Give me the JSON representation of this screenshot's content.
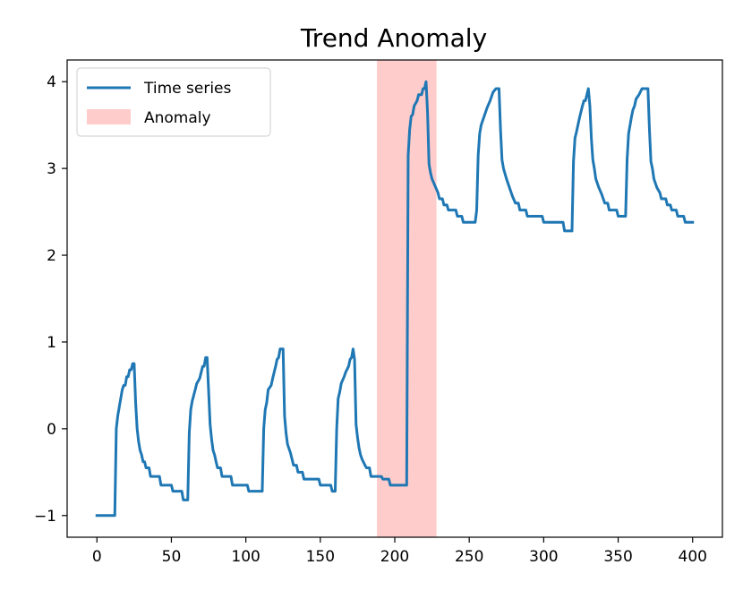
{
  "chart_data": {
    "type": "line",
    "title": "Trend Anomaly",
    "xlabel": "",
    "ylabel": "",
    "xlim": [
      -20,
      420
    ],
    "ylim": [
      -1.25,
      4.25
    ],
    "x_ticks": [
      0,
      50,
      100,
      150,
      200,
      250,
      300,
      350,
      400
    ],
    "y_ticks": [
      -1,
      0,
      1,
      2,
      3,
      4
    ],
    "x_tick_labels": [
      "0",
      "50",
      "100",
      "150",
      "200",
      "250",
      "300",
      "350",
      "400"
    ],
    "y_tick_labels": [
      "−1",
      "0",
      "1",
      "2",
      "3",
      "4"
    ],
    "grid": false,
    "legend_position": "upper-left",
    "legend": [
      {
        "label": "Time series",
        "kind": "line",
        "color": "#1f77b4"
      },
      {
        "label": "Anomaly",
        "kind": "patch",
        "color": "#ffcccc"
      }
    ],
    "anomaly_span": {
      "x_start": 188,
      "x_end": 228,
      "color": "#ffcccc"
    },
    "series": [
      {
        "name": "Time series",
        "color": "#1f77b4",
        "points": [
          [
            0,
            -1.0
          ],
          [
            12,
            -1.0
          ],
          [
            13,
            0.0
          ],
          [
            14,
            0.15
          ],
          [
            15,
            0.25
          ],
          [
            16,
            0.35
          ],
          [
            17,
            0.45
          ],
          [
            18,
            0.5
          ],
          [
            19,
            0.5
          ],
          [
            20,
            0.6
          ],
          [
            21,
            0.6
          ],
          [
            22,
            0.68
          ],
          [
            23,
            0.68
          ],
          [
            24,
            0.75
          ],
          [
            25,
            0.75
          ],
          [
            26,
            0.3
          ],
          [
            27,
            0.0
          ],
          [
            28,
            -0.15
          ],
          [
            29,
            -0.25
          ],
          [
            30,
            -0.3
          ],
          [
            31,
            -0.38
          ],
          [
            32,
            -0.38
          ],
          [
            33,
            -0.45
          ],
          [
            35,
            -0.45
          ],
          [
            36,
            -0.55
          ],
          [
            42,
            -0.55
          ],
          [
            43,
            -0.65
          ],
          [
            50,
            -0.65
          ],
          [
            51,
            -0.72
          ],
          [
            57,
            -0.72
          ],
          [
            58,
            -0.82
          ],
          [
            61,
            -0.82
          ],
          [
            62,
            -0.05
          ],
          [
            63,
            0.22
          ],
          [
            64,
            0.32
          ],
          [
            66,
            0.45
          ],
          [
            67,
            0.52
          ],
          [
            69,
            0.58
          ],
          [
            70,
            0.65
          ],
          [
            71,
            0.72
          ],
          [
            72,
            0.72
          ],
          [
            73,
            0.82
          ],
          [
            74,
            0.82
          ],
          [
            76,
            0.05
          ],
          [
            77,
            -0.12
          ],
          [
            78,
            -0.25
          ],
          [
            79,
            -0.3
          ],
          [
            80,
            -0.38
          ],
          [
            81,
            -0.45
          ],
          [
            83,
            -0.45
          ],
          [
            84,
            -0.55
          ],
          [
            90,
            -0.55
          ],
          [
            91,
            -0.65
          ],
          [
            101,
            -0.65
          ],
          [
            102,
            -0.72
          ],
          [
            111,
            -0.72
          ],
          [
            112,
            0.0
          ],
          [
            113,
            0.22
          ],
          [
            114,
            0.3
          ],
          [
            115,
            0.45
          ],
          [
            117,
            0.5
          ],
          [
            118,
            0.58
          ],
          [
            119,
            0.65
          ],
          [
            120,
            0.72
          ],
          [
            121,
            0.8
          ],
          [
            122,
            0.82
          ],
          [
            123,
            0.92
          ],
          [
            125,
            0.92
          ],
          [
            126,
            0.15
          ],
          [
            127,
            -0.05
          ],
          [
            128,
            -0.18
          ],
          [
            130,
            -0.28
          ],
          [
            131,
            -0.35
          ],
          [
            132,
            -0.42
          ],
          [
            134,
            -0.42
          ],
          [
            135,
            -0.5
          ],
          [
            138,
            -0.5
          ],
          [
            139,
            -0.58
          ],
          [
            149,
            -0.58
          ],
          [
            150,
            -0.65
          ],
          [
            157,
            -0.65
          ],
          [
            158,
            -0.72
          ],
          [
            160,
            -0.72
          ],
          [
            161,
            0.0
          ],
          [
            162,
            0.35
          ],
          [
            163,
            0.42
          ],
          [
            164,
            0.52
          ],
          [
            166,
            0.6
          ],
          [
            167,
            0.65
          ],
          [
            169,
            0.72
          ],
          [
            170,
            0.8
          ],
          [
            171,
            0.82
          ],
          [
            172,
            0.92
          ],
          [
            173,
            0.8
          ],
          [
            174,
            0.05
          ],
          [
            175,
            -0.1
          ],
          [
            176,
            -0.22
          ],
          [
            177,
            -0.3
          ],
          [
            178,
            -0.35
          ],
          [
            180,
            -0.42
          ],
          [
            181,
            -0.45
          ],
          [
            183,
            -0.45
          ],
          [
            184,
            -0.55
          ],
          [
            191,
            -0.55
          ],
          [
            192,
            -0.58
          ],
          [
            196,
            -0.58
          ],
          [
            197,
            -0.65
          ],
          [
            208,
            -0.65
          ],
          [
            209,
            3.15
          ],
          [
            210,
            3.45
          ],
          [
            211,
            3.6
          ],
          [
            212,
            3.62
          ],
          [
            213,
            3.72
          ],
          [
            215,
            3.78
          ],
          [
            216,
            3.85
          ],
          [
            218,
            3.85
          ],
          [
            219,
            3.92
          ],
          [
            220,
            3.92
          ],
          [
            221,
            4.0
          ],
          [
            222,
            3.65
          ],
          [
            223,
            3.05
          ],
          [
            224,
            2.95
          ],
          [
            225,
            2.88
          ],
          [
            227,
            2.8
          ],
          [
            229,
            2.72
          ],
          [
            230,
            2.65
          ],
          [
            232,
            2.65
          ],
          [
            233,
            2.58
          ],
          [
            235,
            2.58
          ],
          [
            236,
            2.52
          ],
          [
            241,
            2.52
          ],
          [
            242,
            2.45
          ],
          [
            245,
            2.45
          ],
          [
            246,
            2.38
          ],
          [
            254,
            2.38
          ],
          [
            255,
            2.52
          ],
          [
            256,
            3.15
          ],
          [
            257,
            3.4
          ],
          [
            258,
            3.5
          ],
          [
            260,
            3.6
          ],
          [
            262,
            3.7
          ],
          [
            264,
            3.78
          ],
          [
            266,
            3.88
          ],
          [
            268,
            3.92
          ],
          [
            270,
            3.92
          ],
          [
            271,
            3.45
          ],
          [
            272,
            3.1
          ],
          [
            273,
            3.0
          ],
          [
            275,
            2.88
          ],
          [
            277,
            2.78
          ],
          [
            279,
            2.68
          ],
          [
            281,
            2.6
          ],
          [
            283,
            2.6
          ],
          [
            284,
            2.52
          ],
          [
            288,
            2.52
          ],
          [
            289,
            2.45
          ],
          [
            299,
            2.45
          ],
          [
            300,
            2.38
          ],
          [
            313,
            2.38
          ],
          [
            314,
            2.28
          ],
          [
            319,
            2.28
          ],
          [
            320,
            3.08
          ],
          [
            321,
            3.35
          ],
          [
            322,
            3.42
          ],
          [
            323,
            3.5
          ],
          [
            324,
            3.58
          ],
          [
            325,
            3.65
          ],
          [
            326,
            3.72
          ],
          [
            327,
            3.78
          ],
          [
            328,
            3.78
          ],
          [
            329,
            3.85
          ],
          [
            330,
            3.92
          ],
          [
            331,
            3.72
          ],
          [
            332,
            3.35
          ],
          [
            333,
            3.1
          ],
          [
            334,
            3.0
          ],
          [
            335,
            2.88
          ],
          [
            337,
            2.78
          ],
          [
            339,
            2.7
          ],
          [
            341,
            2.6
          ],
          [
            343,
            2.6
          ],
          [
            344,
            2.52
          ],
          [
            349,
            2.52
          ],
          [
            350,
            2.45
          ],
          [
            355,
            2.45
          ],
          [
            356,
            3.1
          ],
          [
            357,
            3.4
          ],
          [
            358,
            3.5
          ],
          [
            359,
            3.6
          ],
          [
            360,
            3.68
          ],
          [
            361,
            3.72
          ],
          [
            362,
            3.8
          ],
          [
            364,
            3.85
          ],
          [
            366,
            3.92
          ],
          [
            370,
            3.92
          ],
          [
            371,
            3.45
          ],
          [
            372,
            3.08
          ],
          [
            373,
            3.0
          ],
          [
            374,
            2.88
          ],
          [
            376,
            2.78
          ],
          [
            378,
            2.72
          ],
          [
            379,
            2.65
          ],
          [
            382,
            2.65
          ],
          [
            383,
            2.58
          ],
          [
            385,
            2.58
          ],
          [
            386,
            2.52
          ],
          [
            389,
            2.52
          ],
          [
            390,
            2.45
          ],
          [
            394,
            2.45
          ],
          [
            395,
            2.38
          ],
          [
            397,
            2.38
          ],
          [
            398,
            2.38
          ],
          [
            400,
            2.38
          ]
        ]
      }
    ]
  }
}
